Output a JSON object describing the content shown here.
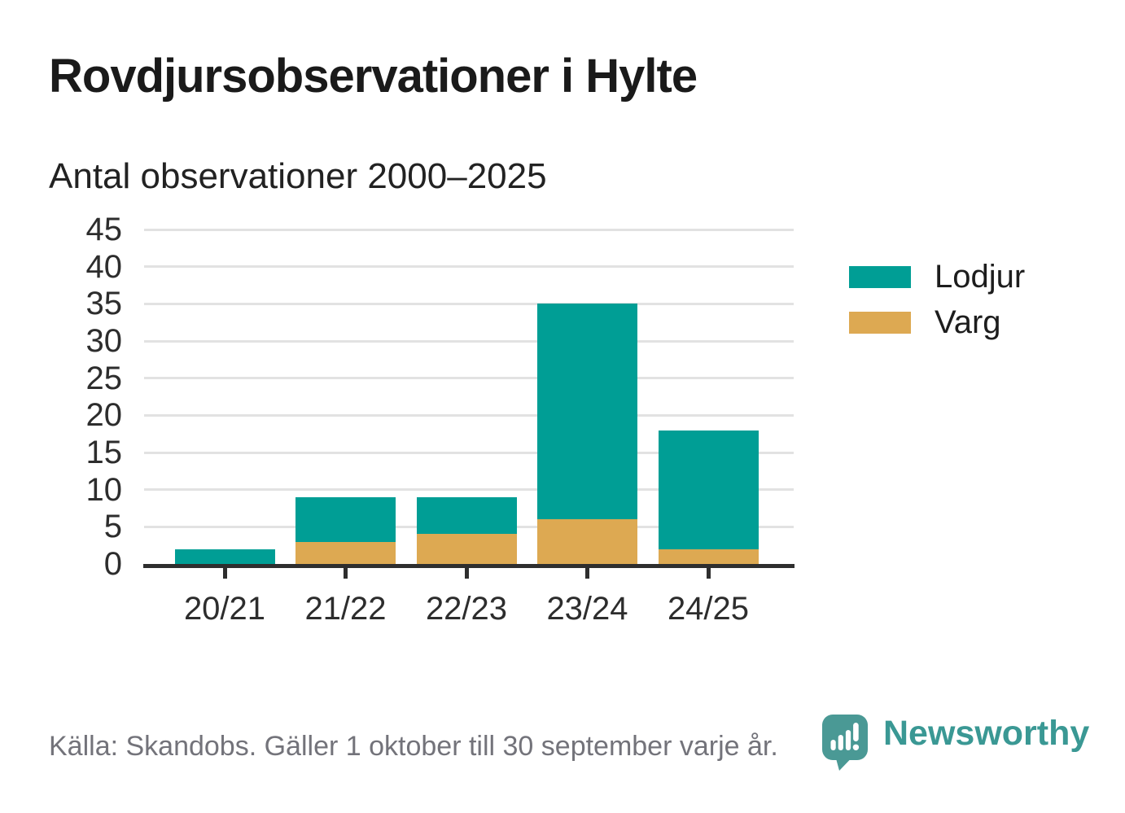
{
  "page": {
    "title": "Rovdjursobservationer i Hylte",
    "subtitle": "Antal observationer 2000–2025"
  },
  "legend": {
    "items": [
      {
        "label": "Lodjur",
        "color": "#009e95"
      },
      {
        "label": "Varg",
        "color": "#dda952"
      }
    ]
  },
  "footer": {
    "source": "Källa: Skandobs. Gäller 1 oktober till 30 september varje år.",
    "brand": "Newsworthy",
    "brand_icon": "newsworthy-speech-bubble-bar-chart-icon",
    "brand_color": "#3a9894",
    "bubble_color": "#4a9995"
  },
  "chart_data": {
    "type": "bar",
    "stacked": true,
    "title": "Rovdjursobservationer i Hylte",
    "subtitle": "Antal observationer 2000–2025",
    "categories": [
      "20/21",
      "21/22",
      "22/23",
      "23/24",
      "24/25"
    ],
    "series": [
      {
        "name": "Varg",
        "color": "#dda952",
        "values": [
          0,
          3,
          4,
          6,
          2
        ]
      },
      {
        "name": "Lodjur",
        "color": "#009e95",
        "values": [
          2,
          6,
          5,
          29,
          16
        ]
      }
    ],
    "series_stack_order": "bottom-to-top",
    "totals": [
      2,
      9,
      9,
      35,
      18
    ],
    "xlabel": "",
    "ylabel": "",
    "ylim": [
      0,
      45
    ],
    "yticks": [
      0,
      5,
      10,
      15,
      20,
      25,
      30,
      35,
      40,
      45
    ],
    "grid": true,
    "gridline_color": "#e2e2e2",
    "axis_color": "#2e2e2e",
    "legend_position": "right"
  }
}
